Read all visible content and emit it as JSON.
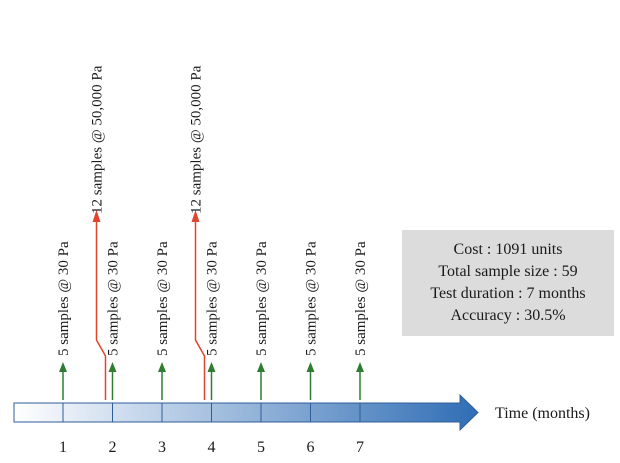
{
  "timeline": {
    "axis_label": "Time (months)",
    "ticks": [
      "1",
      "2",
      "3",
      "4",
      "5",
      "6",
      "7"
    ],
    "start_color": "#ffffff",
    "end_color": "#2f6db5",
    "outline_color": "#2f5d9a"
  },
  "green_tests": {
    "color": "#2e7d32",
    "label": "5 samples @ 30 Pa",
    "months": [
      1,
      2,
      3,
      4,
      5,
      6,
      7
    ]
  },
  "red_tests": {
    "color": "#e0452e",
    "label": "12 samples @ 50,000 Pa",
    "months": [
      2,
      4
    ]
  },
  "summary": {
    "cost": "Cost : 1091 units",
    "sample_size": "Total sample size : 59",
    "duration": "Test duration : 7 months",
    "accuracy": "Accuracy : 30.5%"
  }
}
